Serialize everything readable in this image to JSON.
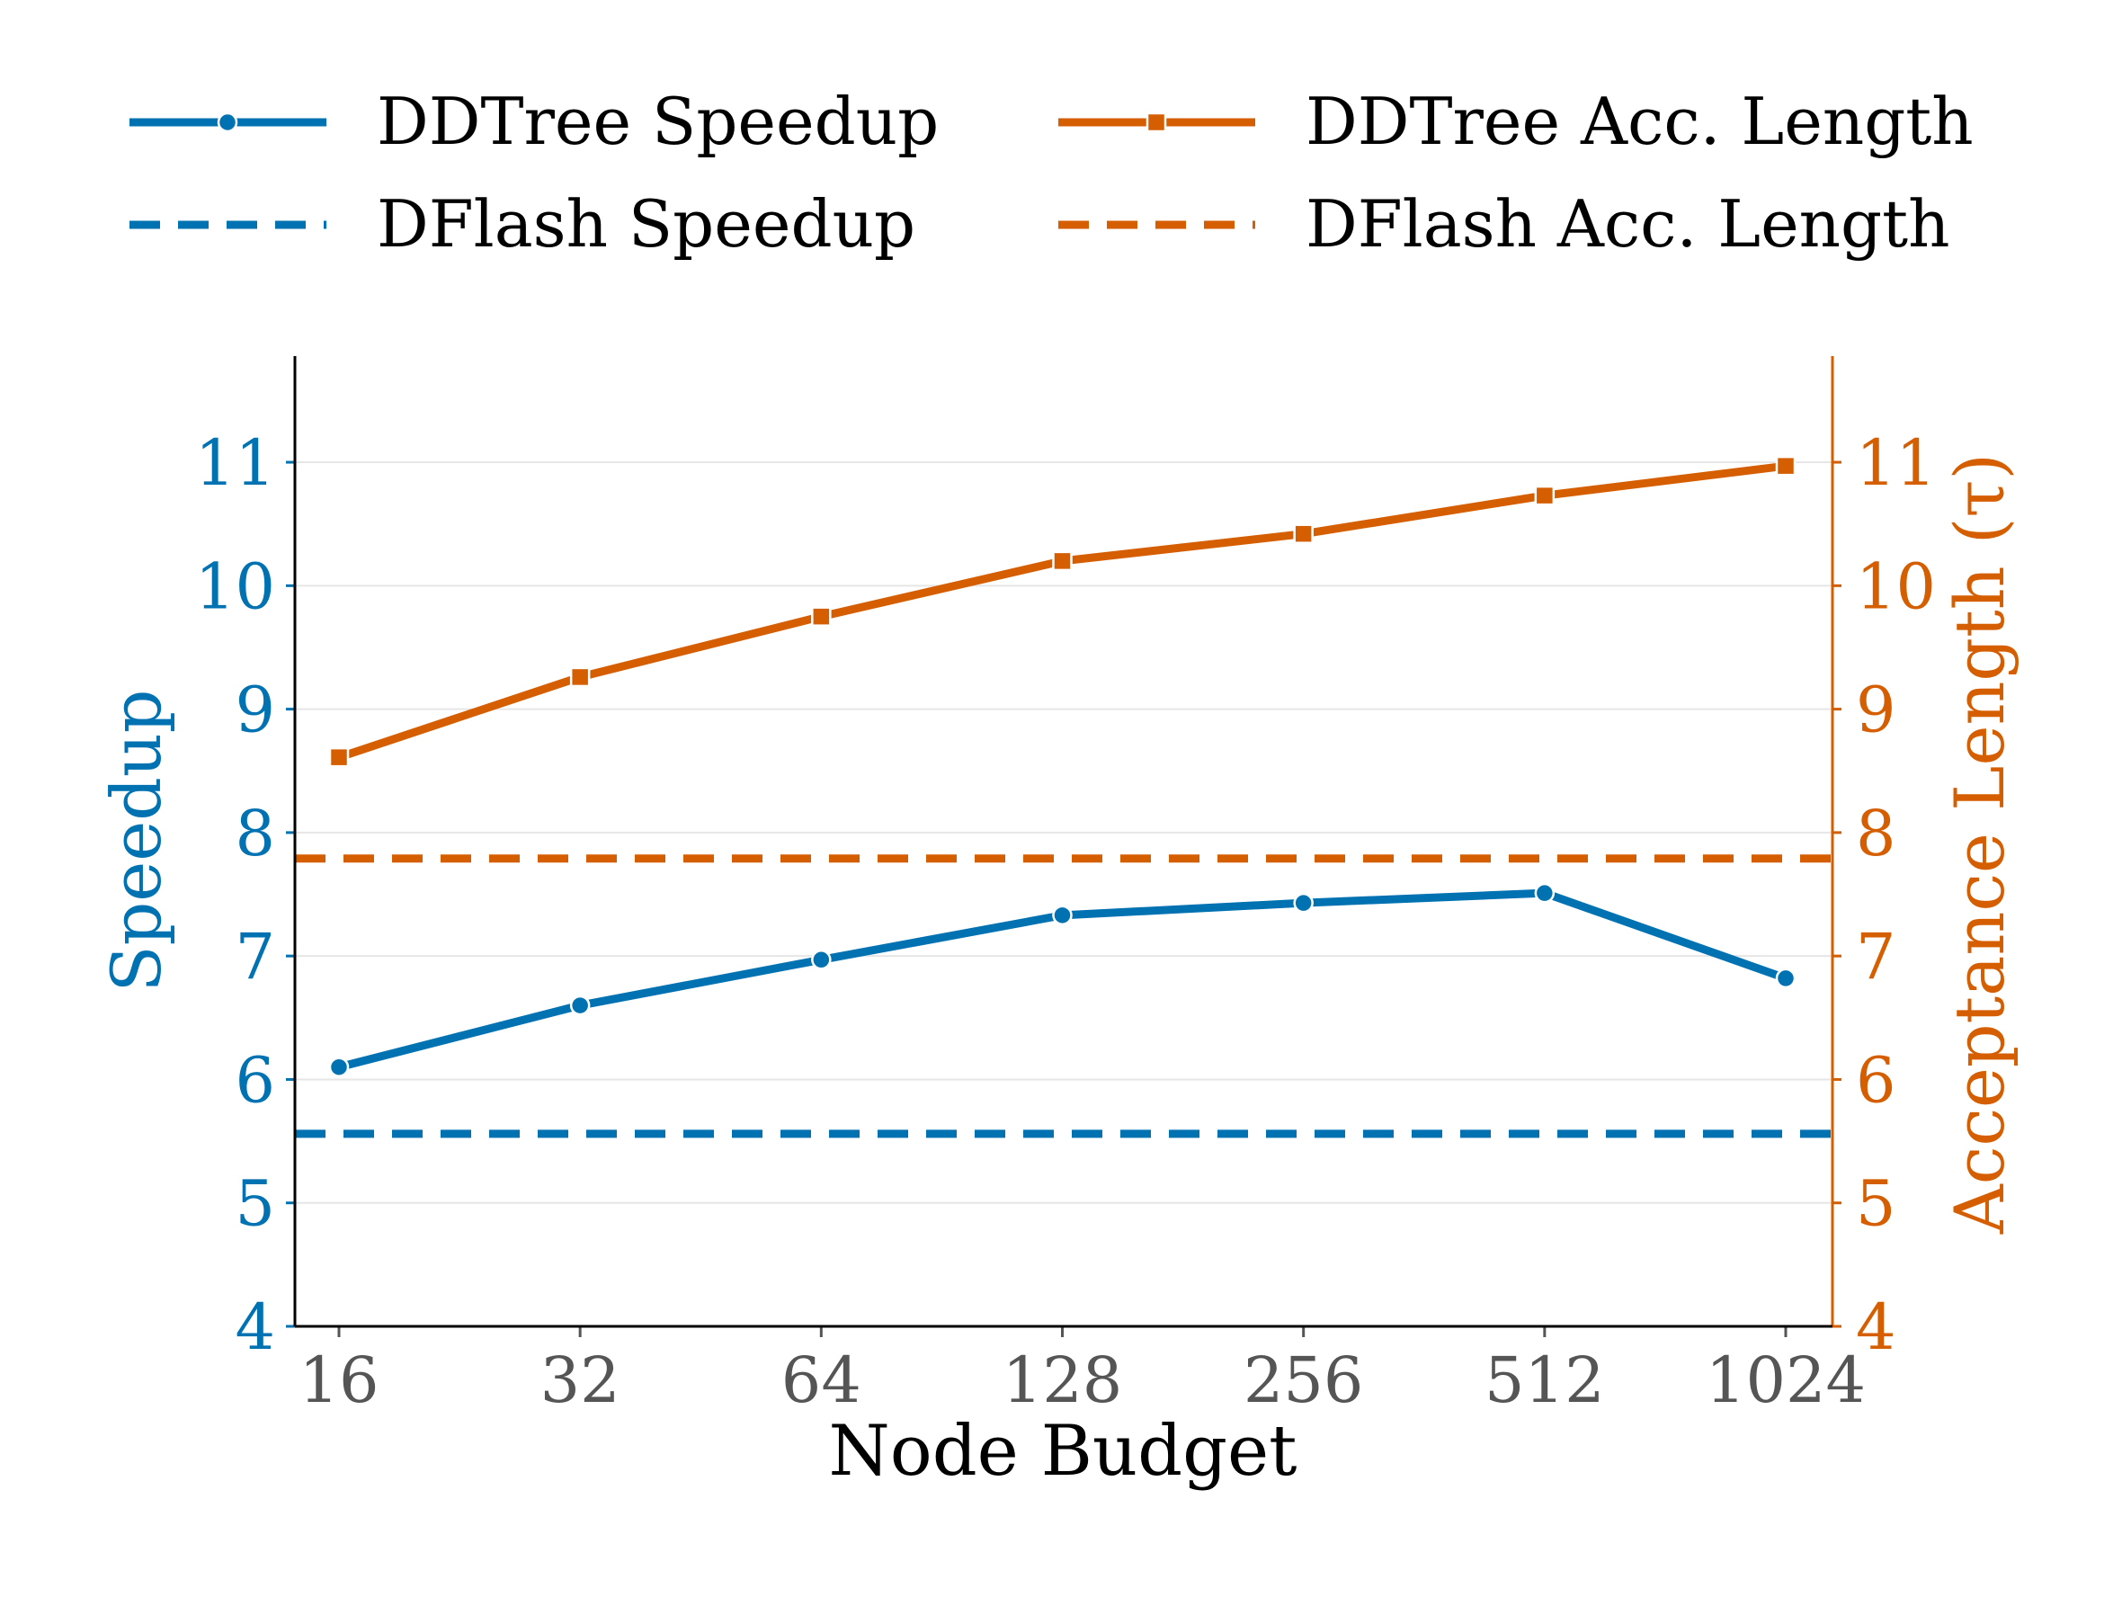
{
  "chart_data": {
    "type": "line",
    "xlabel": "Node Budget",
    "ylabel_left": "Speedup",
    "ylabel_right": "Acceptance Length (τ)",
    "x": [
      "16",
      "32",
      "64",
      "128",
      "256",
      "512",
      "1024"
    ],
    "x_scale": "log2",
    "ylim_left": [
      4,
      11.86
    ],
    "ylim_right": [
      4,
      11.86
    ],
    "yticks": [
      "4",
      "5",
      "6",
      "7",
      "8",
      "9",
      "10",
      "11"
    ],
    "grid": "horizontal",
    "legend_placement": "top",
    "series": [
      {
        "name": "DDTree Speedup",
        "axis": "left",
        "style": "solid",
        "marker": "circle",
        "color": "#0072B2",
        "values": [
          6.1,
          6.6,
          6.97,
          7.33,
          7.43,
          7.51,
          6.82
        ]
      },
      {
        "name": "DDTree Acc. Length",
        "axis": "right",
        "style": "solid",
        "marker": "square",
        "color": "#D55E00",
        "values": [
          8.61,
          9.26,
          9.75,
          10.2,
          10.42,
          10.73,
          10.97
        ]
      },
      {
        "name": "DFlash Speedup",
        "axis": "left",
        "style": "dashed",
        "color": "#0072B2",
        "value": 5.56
      },
      {
        "name": "DFlash Acc. Length",
        "axis": "right",
        "style": "dashed",
        "color": "#D55E00",
        "value": 7.79
      }
    ]
  }
}
